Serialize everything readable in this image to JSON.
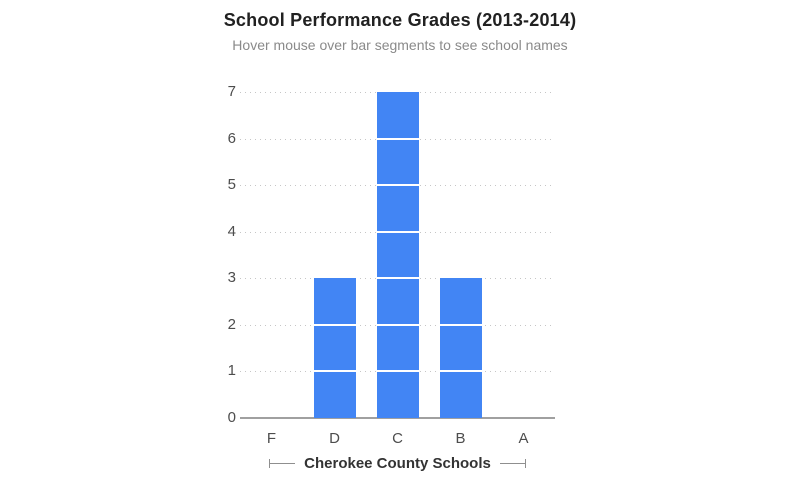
{
  "header": {
    "title": "School Performance Grades (2013-2014)",
    "subtitle": "Hover mouse over bar segments to see school names"
  },
  "chart_data": {
    "type": "bar",
    "title": "School Performance Grades (2013-2014)",
    "subtitle": "Hover mouse over bar segments to see school names",
    "categories": [
      "F",
      "D",
      "C",
      "B",
      "A"
    ],
    "values": [
      0,
      3,
      7,
      3,
      0
    ],
    "xlabel": "Cherokee County Schools",
    "ylabel": "",
    "ylim": [
      0,
      7
    ],
    "yticks": [
      0,
      1,
      2,
      3,
      4,
      5,
      6,
      7
    ],
    "grid": "horizontal-dotted",
    "legend": "none",
    "segmented": true,
    "segment_size": 1,
    "colors": {
      "bar": "#4285f4",
      "segment_divider": "#ffffff",
      "gridline": "#c6c6c6",
      "baseline": "#a0a0a0",
      "tick_label": "#4d4d4d",
      "title": "#212121",
      "subtitle": "#8a8a8a",
      "axis_caption": "#333333",
      "bracket": "#8f8f8f"
    }
  }
}
